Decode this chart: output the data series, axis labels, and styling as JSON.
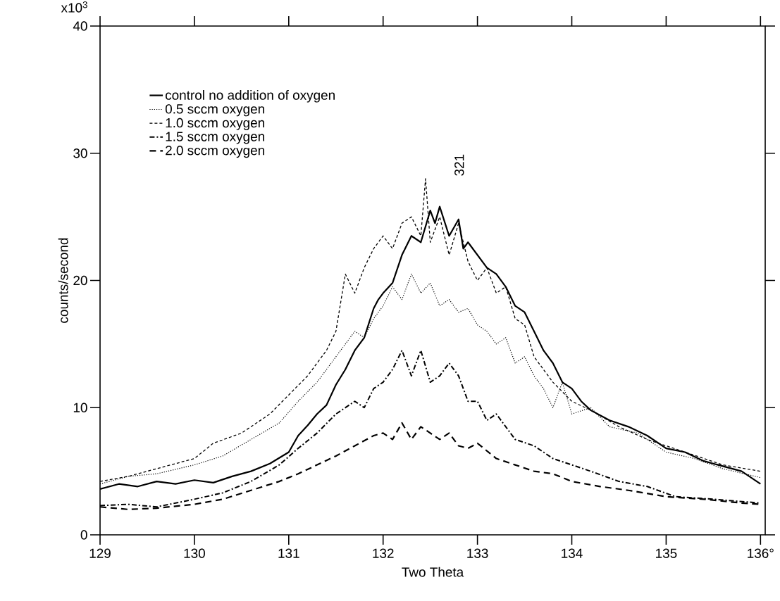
{
  "chart_data": {
    "type": "line",
    "xlabel": "Two Theta",
    "ylabel": "counts/second",
    "xlim": [
      129,
      136.05
    ],
    "ylim": [
      0,
      40
    ],
    "xticks": [
      129,
      130,
      131,
      132,
      133,
      134,
      135,
      {
        "value": 136,
        "label": "136°"
      }
    ],
    "yticks": [
      0,
      10,
      20,
      30,
      40
    ],
    "legend": "top left",
    "grid": false,
    "annotations": [
      "x10$^{3}$",
      "321"
    ],
    "series": [
      {
        "name": "control no addition of oxygen",
        "color": "#000000",
        "line_style": "solid",
        "x": [
          129,
          129.2,
          129.4,
          129.6,
          129.8,
          130,
          130.2,
          130.4,
          130.6,
          130.8,
          131,
          131.1,
          131.2,
          131.3,
          131.4,
          131.5,
          131.6,
          131.7,
          131.8,
          131.9,
          131.95,
          132.0,
          132.1,
          132.2,
          132.3,
          132.4,
          132.5,
          132.55,
          132.6,
          132.7,
          132.8,
          132.85,
          132.9,
          133.0,
          133.1,
          133.2,
          133.3,
          133.4,
          133.5,
          133.6,
          133.7,
          133.8,
          133.9,
          134.0,
          134.1,
          134.2,
          134.4,
          134.6,
          134.8,
          135.0,
          135.2,
          135.4,
          135.6,
          135.8,
          136.0
        ],
        "values": [
          3.6,
          4.0,
          3.8,
          4.2,
          4.0,
          4.3,
          4.1,
          4.6,
          5.0,
          5.6,
          6.5,
          7.8,
          8.6,
          9.5,
          10.2,
          11.8,
          13.0,
          14.5,
          15.5,
          17.8,
          18.5,
          19.0,
          19.8,
          22.0,
          23.5,
          23.0,
          25.5,
          24.5,
          25.8,
          23.5,
          24.8,
          22.5,
          23.0,
          22.0,
          21.0,
          20.5,
          19.5,
          18.0,
          17.5,
          16.0,
          14.5,
          13.5,
          12.0,
          11.5,
          10.5,
          9.8,
          9.0,
          8.5,
          7.8,
          6.8,
          6.5,
          5.8,
          5.4,
          5.0,
          4.0
        ]
      },
      {
        "name": "0.5 sccm oxygen",
        "color": "#000000",
        "line_style": "dotted",
        "x": [
          129,
          129.3,
          129.6,
          130,
          130.3,
          130.6,
          130.9,
          131.1,
          131.3,
          131.5,
          131.7,
          131.8,
          131.9,
          132.0,
          132.1,
          132.2,
          132.3,
          132.4,
          132.5,
          132.6,
          132.7,
          132.8,
          132.9,
          133.0,
          133.1,
          133.2,
          133.3,
          133.4,
          133.5,
          133.6,
          133.7,
          133.8,
          133.9,
          134.0,
          134.2,
          134.4,
          134.7,
          135.0,
          135.3,
          135.6,
          136.0
        ],
        "values": [
          4.0,
          4.6,
          4.8,
          5.5,
          6.2,
          7.5,
          8.8,
          10.5,
          12.0,
          14.0,
          16.0,
          15.5,
          17.0,
          18.0,
          19.5,
          18.5,
          20.5,
          19.0,
          19.8,
          18.0,
          18.5,
          17.5,
          17.8,
          16.5,
          16.0,
          15.0,
          15.5,
          13.5,
          14.0,
          12.5,
          11.5,
          10.0,
          12.0,
          9.5,
          10.0,
          8.5,
          8.0,
          6.5,
          6.0,
          5.2,
          4.5
        ]
      },
      {
        "name": "1.0 sccm oxygen",
        "color": "#000000",
        "line_style": "dashed",
        "x": [
          129,
          129.3,
          129.6,
          130,
          130.2,
          130.5,
          130.8,
          131.0,
          131.2,
          131.4,
          131.5,
          131.6,
          131.7,
          131.8,
          131.9,
          132.0,
          132.1,
          132.2,
          132.3,
          132.4,
          132.45,
          132.5,
          132.6,
          132.7,
          132.8,
          132.9,
          133.0,
          133.1,
          133.2,
          133.3,
          133.4,
          133.5,
          133.6,
          133.7,
          133.8,
          134.0,
          134.2,
          134.5,
          134.8,
          135.2,
          135.6,
          136.0
        ],
        "values": [
          4.2,
          4.6,
          5.2,
          6.0,
          7.2,
          8.0,
          9.5,
          11.0,
          12.5,
          14.5,
          16.0,
          20.5,
          19.0,
          21.0,
          22.5,
          23.5,
          22.5,
          24.5,
          25.0,
          23.5,
          28.0,
          23.0,
          25.0,
          22.0,
          24.5,
          21.5,
          20.0,
          21.0,
          19.0,
          19.5,
          17.0,
          16.5,
          14.0,
          13.0,
          12.0,
          10.5,
          9.8,
          8.5,
          7.5,
          6.5,
          5.5,
          5.0
        ]
      },
      {
        "name": "1.5 sccm oxygen",
        "color": "#000000",
        "line_style": "dashdot",
        "x": [
          129,
          129.3,
          129.6,
          130,
          130.3,
          130.6,
          130.9,
          131.1,
          131.3,
          131.5,
          131.7,
          131.8,
          131.9,
          132.0,
          132.1,
          132.2,
          132.3,
          132.4,
          132.5,
          132.6,
          132.7,
          132.8,
          132.9,
          133.0,
          133.1,
          133.2,
          133.4,
          133.6,
          133.8,
          134.0,
          134.2,
          134.5,
          134.8,
          135.1,
          135.5,
          136.0
        ],
        "values": [
          2.3,
          2.4,
          2.2,
          2.8,
          3.3,
          4.2,
          5.5,
          6.8,
          8.0,
          9.5,
          10.5,
          10.0,
          11.5,
          12.0,
          13.0,
          14.5,
          12.5,
          14.5,
          12.0,
          12.5,
          13.5,
          12.5,
          10.5,
          10.5,
          9.0,
          9.5,
          7.5,
          7.0,
          6.0,
          5.5,
          5.0,
          4.2,
          3.8,
          3.0,
          2.8,
          2.5
        ]
      },
      {
        "name": "2.0 sccm oxygen",
        "color": "#000000",
        "line_style": "longdash",
        "x": [
          129,
          129.3,
          129.6,
          130,
          130.3,
          130.6,
          130.9,
          131.1,
          131.3,
          131.5,
          131.7,
          131.9,
          132.0,
          132.1,
          132.2,
          132.3,
          132.4,
          132.5,
          132.6,
          132.7,
          132.8,
          132.9,
          133.0,
          133.2,
          133.4,
          133.6,
          133.8,
          134.0,
          134.3,
          134.6,
          135.0,
          135.4,
          135.8,
          136.0
        ],
        "values": [
          2.2,
          2.0,
          2.1,
          2.4,
          2.8,
          3.5,
          4.2,
          4.8,
          5.5,
          6.2,
          7.0,
          7.8,
          8.0,
          7.5,
          8.8,
          7.5,
          8.5,
          8.0,
          7.5,
          8.0,
          7.0,
          6.8,
          7.2,
          6.0,
          5.5,
          5.0,
          4.8,
          4.2,
          3.8,
          3.5,
          3.0,
          2.8,
          2.5,
          2.4
        ]
      }
    ]
  }
}
